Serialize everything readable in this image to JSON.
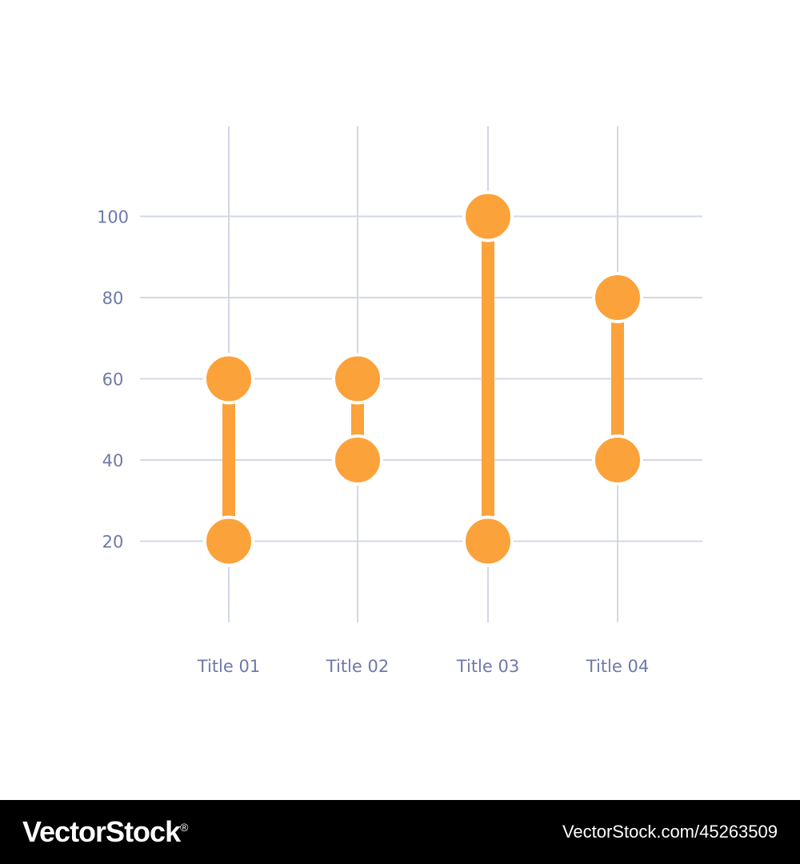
{
  "chart_data": {
    "type": "dumbbell",
    "categories": [
      "Title 01",
      "Title 02",
      "Title 03",
      "Title 04"
    ],
    "ranges": [
      {
        "low": 20,
        "high": 60
      },
      {
        "low": 40,
        "high": 60
      },
      {
        "low": 20,
        "high": 100
      },
      {
        "low": 40,
        "high": 80
      }
    ],
    "yticks": [
      20,
      40,
      60,
      80,
      100
    ],
    "ylim": [
      0,
      120
    ],
    "grid": true,
    "colors": {
      "marker": "#fca23a",
      "grid": "#d3d8e6",
      "text": "#6f79a8"
    }
  },
  "footer": {
    "brand": "VectorStock",
    "brand_mark": "®",
    "image_id": "VectorStock.com/45263509"
  }
}
